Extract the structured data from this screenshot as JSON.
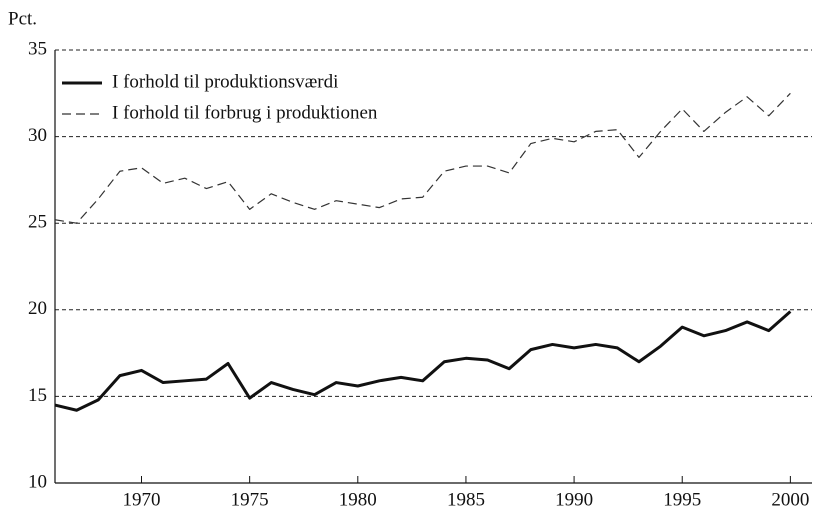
{
  "chart_data": {
    "type": "line",
    "y_label": "Pct.",
    "x": [
      1966,
      1967,
      1968,
      1969,
      1970,
      1971,
      1972,
      1973,
      1974,
      1975,
      1976,
      1977,
      1978,
      1979,
      1980,
      1981,
      1982,
      1983,
      1984,
      1985,
      1986,
      1987,
      1988,
      1989,
      1990,
      1991,
      1992,
      1993,
      1994,
      1995,
      1996,
      1997,
      1998,
      1999,
      2000
    ],
    "series": [
      {
        "name": "I forhold til produktionsværdi",
        "color": "#111111",
        "dash": "solid",
        "values": [
          14.5,
          14.2,
          14.8,
          16.2,
          16.5,
          15.8,
          15.9,
          16.0,
          16.9,
          14.9,
          15.8,
          15.4,
          15.1,
          15.8,
          15.6,
          15.9,
          16.1,
          15.9,
          17.0,
          17.2,
          17.1,
          16.6,
          17.7,
          18.0,
          17.8,
          18.0,
          17.8,
          17.0,
          17.9,
          19.0,
          18.5,
          18.8,
          19.3,
          18.8,
          19.9
        ]
      },
      {
        "name": "I forhold til forbrug i produktionen",
        "color": "#333333",
        "dash": "dashed",
        "values": [
          25.2,
          25.0,
          26.4,
          28.0,
          28.2,
          27.3,
          27.6,
          27.0,
          27.4,
          25.8,
          26.7,
          26.2,
          25.8,
          26.3,
          26.1,
          25.9,
          26.4,
          26.5,
          28.0,
          28.3,
          28.3,
          27.9,
          29.6,
          29.9,
          29.7,
          30.3,
          30.4,
          28.8,
          30.3,
          31.6,
          30.3,
          31.4,
          32.3,
          31.2,
          32.5
        ]
      }
    ],
    "xlim": [
      1966,
      2001
    ],
    "xticks": [
      1970,
      1975,
      1980,
      1985,
      1990,
      1995,
      2000
    ],
    "ylim": [
      10,
      35
    ],
    "yticks": [
      10,
      15,
      20,
      25,
      30,
      35
    ],
    "grid": true,
    "legend": "top-left"
  }
}
